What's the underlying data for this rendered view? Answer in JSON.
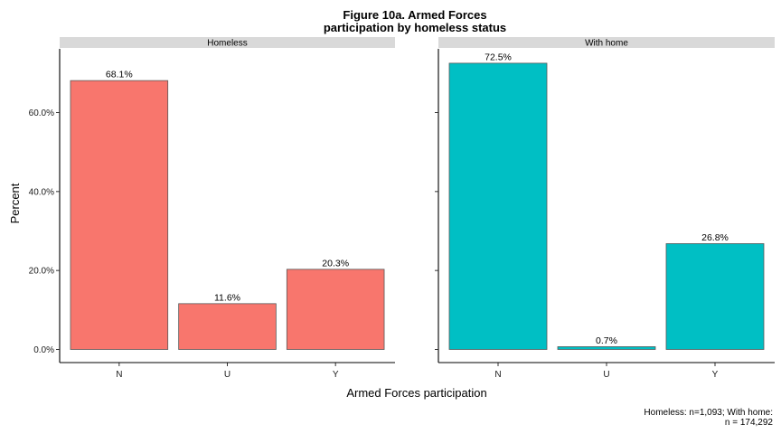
{
  "chart_data": {
    "type": "bar",
    "title_line1": "Figure 10a. Armed Forces",
    "title_line2": "participation by homeless status",
    "xlabel": "Armed Forces participation",
    "ylabel": "Percent",
    "categories": [
      "N",
      "U",
      "Y"
    ],
    "ylim": [
      0,
      0.75
    ],
    "yticks": [
      0,
      0.2,
      0.4,
      0.6
    ],
    "ytick_labels": [
      "0.0%",
      "20.0%",
      "40.0%",
      "60.0%"
    ],
    "grid": false,
    "legend": "none",
    "panels": [
      {
        "name": "Homeless",
        "color": "#F8766D",
        "values": [
          0.681,
          0.116,
          0.203
        ],
        "labels": [
          "68.1%",
          "11.6%",
          "20.3%"
        ]
      },
      {
        "name": "With home",
        "color": "#00BFC4",
        "values": [
          0.725,
          0.007,
          0.268
        ],
        "labels": [
          "72.5%",
          "0.7%",
          "26.8%"
        ]
      }
    ],
    "caption_line1": "Homeless: n=1,093; With home:",
    "caption_line2": "n = 174,292"
  }
}
